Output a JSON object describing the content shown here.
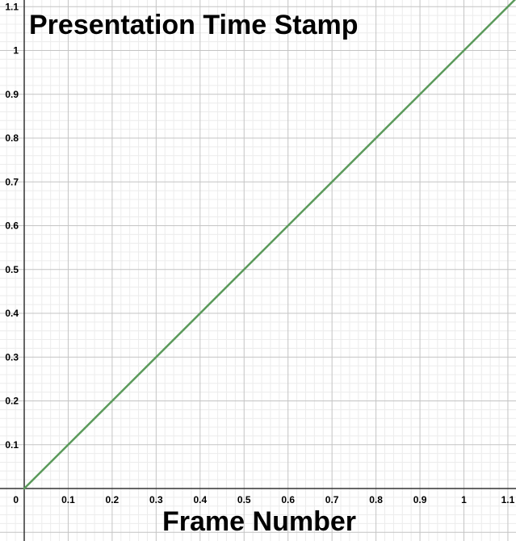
{
  "chart_data": {
    "type": "line",
    "xlabel": "Frame Number",
    "ylabel": "Presentation Time Stamp",
    "xlim": [
      0,
      1.12
    ],
    "ylim": [
      0,
      1.12
    ],
    "xticks": [
      "0.1",
      "0.2",
      "0.3",
      "0.4",
      "0.5",
      "0.6",
      "0.7",
      "0.8",
      "0.9",
      "1",
      "1.1"
    ],
    "yticks": [
      "0.1",
      "0.2",
      "0.3",
      "0.4",
      "0.5",
      "0.6",
      "0.7",
      "0.8",
      "0.9",
      "1",
      "1.1"
    ],
    "origin_label": "0",
    "grid": true,
    "series": [
      {
        "x": [
          0,
          1.12
        ],
        "y": [
          0,
          1.12
        ],
        "color": "#5b9a5b"
      }
    ]
  }
}
